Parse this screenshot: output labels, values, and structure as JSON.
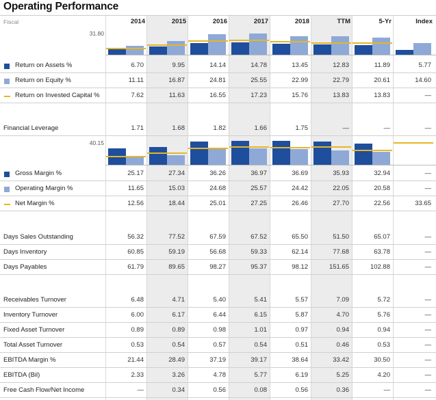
{
  "title": "Operating Performance",
  "fiscal_label": "Fiscal",
  "columns": [
    "2014",
    "2015",
    "2016",
    "2017",
    "2018",
    "TTM",
    "5-Yr",
    "Index"
  ],
  "colors": {
    "dark_blue": "#1f4e9c",
    "light_blue": "#8fa9d6",
    "gold": "#e6b625"
  },
  "chart_data": [
    {
      "type": "bar",
      "axis_label": "31.80",
      "categories": [
        "2014",
        "2015",
        "2016",
        "2017",
        "2018",
        "TTM",
        "5-Yr",
        "Index"
      ],
      "ylim": [
        0,
        31.8
      ],
      "series": [
        {
          "name": "Return on Assets %",
          "values": [
            6.7,
            9.95,
            14.14,
            14.78,
            13.45,
            12.83,
            11.89,
            5.77
          ]
        },
        {
          "name": "Return on Equity %",
          "values": [
            11.11,
            16.87,
            24.81,
            25.55,
            22.99,
            22.79,
            20.61,
            14.6
          ]
        },
        {
          "name": "Return on Invested Capital %",
          "values": [
            7.62,
            11.63,
            16.55,
            17.23,
            15.76,
            13.83,
            13.83,
            null
          ]
        }
      ]
    },
    {
      "type": "bar",
      "axis_label": "40.15",
      "categories": [
        "2014",
        "2015",
        "2016",
        "2017",
        "2018",
        "TTM",
        "5-Yr",
        "Index"
      ],
      "ylim": [
        0,
        40.15
      ],
      "series": [
        {
          "name": "Gross Margin %",
          "values": [
            25.17,
            27.34,
            36.26,
            36.97,
            36.69,
            35.93,
            32.94,
            null
          ]
        },
        {
          "name": "Operating Margin %",
          "values": [
            11.65,
            15.03,
            24.68,
            25.57,
            24.42,
            22.05,
            20.58,
            null
          ]
        },
        {
          "name": "Net Margin %",
          "values": [
            12.56,
            18.44,
            25.01,
            27.25,
            26.46,
            27.7,
            22.56,
            33.65
          ]
        }
      ]
    }
  ],
  "rows1": [
    {
      "label": "Return on Assets %",
      "legend": "dark",
      "values": [
        "6.70",
        "9.95",
        "14.14",
        "14.78",
        "13.45",
        "12.83",
        "11.89",
        "5.77"
      ]
    },
    {
      "label": "Return on Equity %",
      "legend": "light",
      "values": [
        "11.11",
        "16.87",
        "24.81",
        "25.55",
        "22.99",
        "22.79",
        "20.61",
        "14.60"
      ]
    },
    {
      "label": "Return on Invested Capital %",
      "legend": "line",
      "values": [
        "7.62",
        "11.63",
        "16.55",
        "17.23",
        "15.76",
        "13.83",
        "13.83",
        "—"
      ]
    }
  ],
  "leverage": {
    "label": "Financial Leverage",
    "values": [
      "1.71",
      "1.68",
      "1.82",
      "1.66",
      "1.75",
      "—",
      "—",
      "—"
    ]
  },
  "rows2": [
    {
      "label": "Gross Margin %",
      "legend": "dark",
      "values": [
        "25.17",
        "27.34",
        "36.26",
        "36.97",
        "36.69",
        "35.93",
        "32.94",
        "—"
      ]
    },
    {
      "label": "Operating Margin %",
      "legend": "light",
      "values": [
        "11.65",
        "15.03",
        "24.68",
        "25.57",
        "24.42",
        "22.05",
        "20.58",
        "—"
      ]
    },
    {
      "label": "Net Margin %",
      "legend": "line",
      "values": [
        "12.56",
        "18.44",
        "25.01",
        "27.25",
        "26.46",
        "27.70",
        "22.56",
        "33.65"
      ]
    }
  ],
  "rows3": [
    {
      "label": "Days Sales Outstanding",
      "values": [
        "56.32",
        "77.52",
        "67.59",
        "67.52",
        "65.50",
        "51.50",
        "65.07",
        "—"
      ]
    },
    {
      "label": "Days Inventory",
      "values": [
        "60.85",
        "59.19",
        "56.68",
        "59.33",
        "62.14",
        "77.68",
        "63.78",
        "—"
      ]
    },
    {
      "label": "Days Payables",
      "values": [
        "61.79",
        "89.65",
        "98.27",
        "95.37",
        "98.12",
        "151.65",
        "102.88",
        "—"
      ]
    }
  ],
  "rows4": [
    {
      "label": "Receivables Turnover",
      "values": [
        "6.48",
        "4.71",
        "5.40",
        "5.41",
        "5.57",
        "7.09",
        "5.72",
        "—"
      ]
    },
    {
      "label": "Inventory Turnover",
      "values": [
        "6.00",
        "6.17",
        "6.44",
        "6.15",
        "5.87",
        "4.70",
        "5.76",
        "—"
      ]
    },
    {
      "label": "Fixed Asset Turnover",
      "values": [
        "0.89",
        "0.89",
        "0.98",
        "1.01",
        "0.97",
        "0.94",
        "0.94",
        "—"
      ]
    },
    {
      "label": "Total Asset Turnover",
      "values": [
        "0.53",
        "0.54",
        "0.57",
        "0.54",
        "0.51",
        "0.46",
        "0.53",
        "—"
      ]
    },
    {
      "label": "EBITDA Margin %",
      "values": [
        "21.44",
        "28.49",
        "37.19",
        "39.17",
        "38.64",
        "33.42",
        "30.50",
        "—"
      ]
    },
    {
      "label": "EBITDA (Bil)",
      "values": [
        "2.33",
        "3.26",
        "4.78",
        "5.77",
        "6.19",
        "5.25",
        "4.20",
        "—"
      ]
    },
    {
      "label": "Free Cash Flow/Net Income",
      "values": [
        "—",
        "0.34",
        "0.56",
        "0.08",
        "0.56",
        "0.36",
        "—",
        "—"
      ]
    }
  ]
}
